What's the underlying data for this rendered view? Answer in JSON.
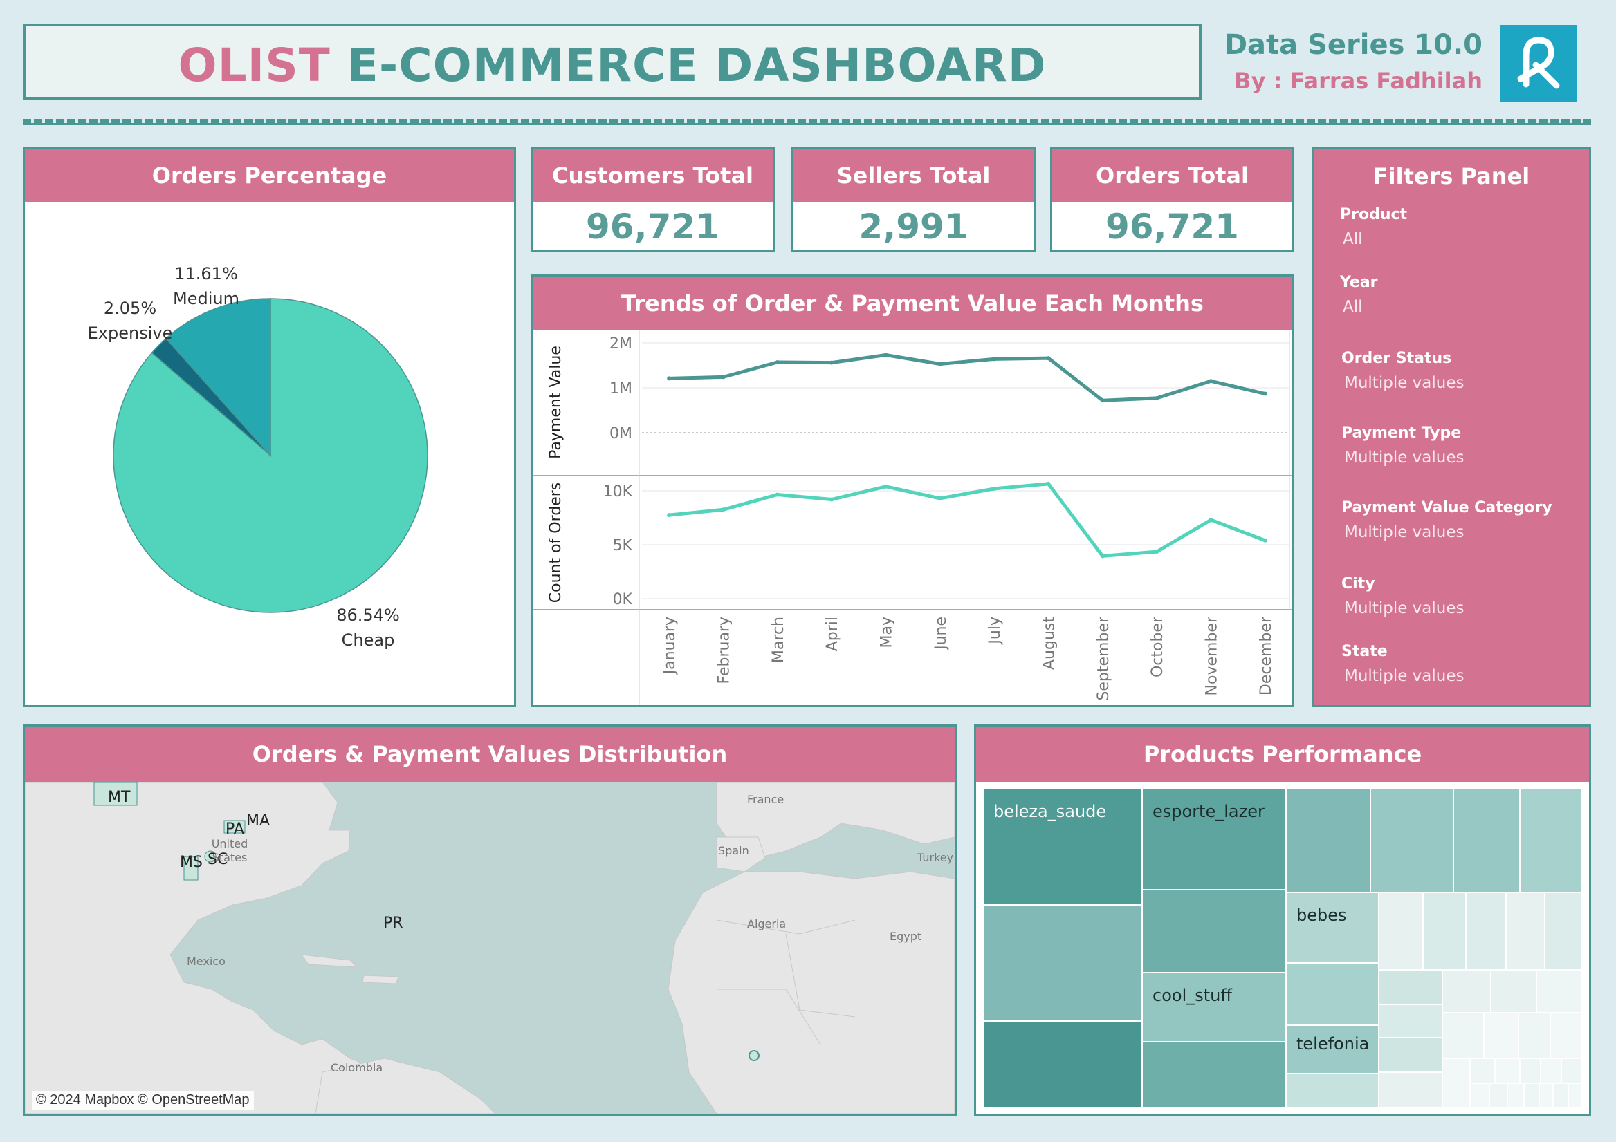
{
  "header": {
    "title_part1": "OLIST",
    "title_part2": "E-COMMERCE DASHBOARD",
    "series": "Data Series 10.0",
    "author": "By : Farras Fadhilah"
  },
  "colors": {
    "pink": "#d47292",
    "teal": "#4a9692",
    "cheap": "#52d3bb",
    "medium": "#26a8b0",
    "expensive": "#156a80",
    "payment_line": "#4a9692",
    "orders_line": "#52d3bb"
  },
  "pie": {
    "title": "Orders Percentage",
    "slices": [
      {
        "name": "Cheap",
        "percent_label": "86.54%",
        "value": 86.54
      },
      {
        "name": "Expensive",
        "percent_label": "2.05%",
        "value": 2.05
      },
      {
        "name": "Medium",
        "percent_label": "11.61%",
        "value": 11.61
      }
    ]
  },
  "kpis": [
    {
      "label": "Customers Total",
      "value": "96,721"
    },
    {
      "label": "Sellers Total",
      "value": "2,991"
    },
    {
      "label": "Orders Total",
      "value": "96,721"
    }
  ],
  "trend": {
    "title": "Trends of Order & Payment Value Each Months"
  },
  "chart_data": [
    {
      "type": "pie",
      "title": "Orders Percentage",
      "categories": [
        "Cheap",
        "Expensive",
        "Medium"
      ],
      "values": [
        86.54,
        2.05,
        11.61
      ]
    },
    {
      "type": "line",
      "title": "Trends of Order & Payment Value Each Months",
      "categories": [
        "January",
        "February",
        "March",
        "April",
        "May",
        "June",
        "July",
        "August",
        "September",
        "October",
        "November",
        "December"
      ],
      "series": [
        {
          "name": "Payment Value",
          "values": [
            1210000,
            1240000,
            1570000,
            1560000,
            1730000,
            1530000,
            1640000,
            1660000,
            720000,
            770000,
            1150000,
            870000
          ]
        },
        {
          "name": "Count of Orders",
          "values": [
            7750,
            8250,
            9650,
            9200,
            10400,
            9300,
            10200,
            10650,
            3950,
            4350,
            7300,
            5400
          ]
        }
      ],
      "panels": [
        {
          "ylabel": "Payment Value",
          "ylim": [
            0,
            2000000
          ],
          "ticks": [
            "2M",
            "1M",
            "0M"
          ],
          "tick_values": [
            2000000,
            1000000,
            0
          ]
        },
        {
          "ylabel": "Count of Orders",
          "ylim": [
            0,
            10000
          ],
          "ticks": [
            "10K",
            "5K",
            "0K"
          ],
          "tick_values": [
            10000,
            5000,
            0
          ]
        }
      ]
    },
    {
      "type": "treemap",
      "title": "Products Performance",
      "labeled_categories": [
        "beleza_saude",
        "esporte_lazer",
        "bebes",
        "cool_stuff",
        "telefonia"
      ]
    }
  ],
  "filters": {
    "title": "Filters Panel",
    "items": [
      {
        "label": "Product",
        "value": "All"
      },
      {
        "label": "Year",
        "value": "All"
      },
      {
        "label": "Order Status",
        "value": "Multiple values"
      },
      {
        "label": "Payment Type",
        "value": "Multiple values"
      },
      {
        "label": "Payment Value Category",
        "value": "Multiple values"
      },
      {
        "label": "City",
        "value": "Multiple values"
      },
      {
        "label": "State",
        "value": "Multiple values"
      }
    ]
  },
  "map": {
    "title": "Orders & Payment Values Distribution",
    "states": [
      "MT",
      "MA",
      "PA",
      "MS",
      "SC",
      "PR"
    ],
    "places": [
      "United States",
      "Mexico",
      "Colombia",
      "France",
      "Spain",
      "Turkey",
      "Algeria",
      "Egypt"
    ],
    "credit": "© 2024 Mapbox © OpenStreetMap"
  },
  "treemap": {
    "title": "Products Performance"
  }
}
